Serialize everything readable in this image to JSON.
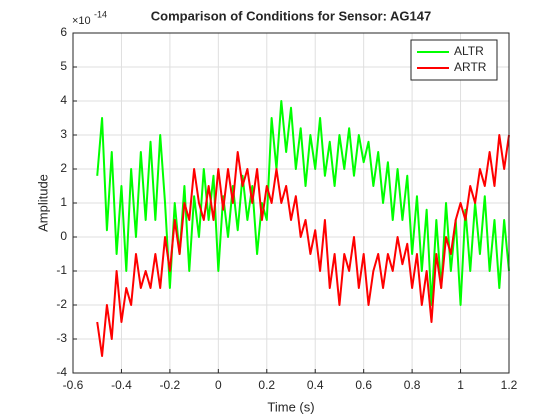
{
  "chart_data": {
    "type": "line",
    "title": "Comparison of Conditions for Sensor: AG147",
    "x_label": "Time (s)",
    "y_label": "Amplitude",
    "y_exponent": {
      "base": "×10",
      "power": "-14"
    },
    "x": [
      -0.5,
      -0.48,
      -0.46,
      -0.44,
      -0.42,
      -0.4,
      -0.38,
      -0.36,
      -0.34,
      -0.32,
      -0.3,
      -0.28,
      -0.26,
      -0.24,
      -0.22,
      -0.2,
      -0.18,
      -0.16,
      -0.14,
      -0.12,
      -0.1,
      -0.08,
      -0.06,
      -0.04,
      -0.02,
      0,
      0.02,
      0.04,
      0.06,
      0.08,
      0.1,
      0.12,
      0.14,
      0.16,
      0.18,
      0.2,
      0.22,
      0.24,
      0.26,
      0.28,
      0.3,
      0.32,
      0.34,
      0.36,
      0.38,
      0.4,
      0.42,
      0.44,
      0.46,
      0.48,
      0.5,
      0.52,
      0.54,
      0.56,
      0.58,
      0.6,
      0.62,
      0.64,
      0.66,
      0.68,
      0.7,
      0.72,
      0.74,
      0.76,
      0.78,
      0.8,
      0.82,
      0.84,
      0.86,
      0.88,
      0.9,
      0.92,
      0.94,
      0.96,
      0.98,
      1,
      1.02,
      1.04,
      1.06,
      1.08,
      1.1,
      1.12,
      1.14,
      1.16,
      1.18,
      1.2
    ],
    "series": [
      {
        "name": "ALTR",
        "color": "#00ff00",
        "values": [
          1.8,
          3.5,
          0.2,
          2.5,
          -0.5,
          1.5,
          -1.0,
          2.0,
          0.0,
          2.5,
          0.5,
          2.8,
          0.5,
          3.0,
          1.0,
          -1.5,
          1.0,
          -0.5,
          1.5,
          -1.0,
          1.2,
          0.0,
          2.0,
          0.5,
          1.8,
          -1.0,
          1.2,
          0.0,
          1.5,
          0.2,
          1.8,
          0.5,
          1.5,
          -0.5,
          1.0,
          0.5,
          3.5,
          2.0,
          4.0,
          2.5,
          3.8,
          2.0,
          3.2,
          1.5,
          3.0,
          2.0,
          3.5,
          1.8,
          2.8,
          1.5,
          3.0,
          2.0,
          3.2,
          1.8,
          3.0,
          2.2,
          2.8,
          1.5,
          2.5,
          1.0,
          2.2,
          0.5,
          2.0,
          0.5,
          1.8,
          -0.5,
          1.2,
          -1.0,
          0.8,
          -2.0,
          0.5,
          -1.5,
          1.0,
          -1.0,
          0.5,
          -2.0,
          0.8,
          -1.0,
          1.0,
          -0.5,
          1.2,
          -1.0,
          0.5,
          -1.5,
          0.5,
          -1.0
        ]
      },
      {
        "name": "ARTR",
        "color": "#ff0000",
        "values": [
          -2.5,
          -3.5,
          -2.0,
          -3.0,
          -1.0,
          -2.5,
          -1.5,
          -2.0,
          -0.5,
          -1.5,
          -1.0,
          -1.5,
          -0.5,
          -1.5,
          0.0,
          -1.0,
          0.5,
          -0.5,
          1.0,
          0.5,
          2.0,
          1.0,
          0.5,
          1.5,
          0.5,
          2.0,
          0.8,
          2.0,
          1.0,
          2.5,
          1.5,
          2.0,
          1.0,
          2.0,
          0.5,
          1.5,
          1.0,
          2.0,
          1.0,
          1.5,
          0.5,
          1.2,
          0.0,
          0.5,
          -0.5,
          0.2,
          -1.0,
          0.5,
          -1.5,
          -0.5,
          -2.0,
          -0.5,
          -1.0,
          0.0,
          -1.5,
          -0.5,
          -2.0,
          -1.0,
          -0.5,
          -1.5,
          -0.5,
          -1.0,
          0.0,
          -0.8,
          -0.2,
          -1.5,
          -0.5,
          -2.0,
          -1.0,
          -2.5,
          -0.5,
          -1.5,
          0.0,
          -0.5,
          0.5,
          1.0,
          0.5,
          1.5,
          1.0,
          2.0,
          1.5,
          2.5,
          1.5,
          3.0,
          2.0,
          3.0
        ]
      }
    ],
    "xlim": [
      -0.6,
      1.2
    ],
    "xticks": [
      -0.6,
      -0.4,
      -0.2,
      0,
      0.2,
      0.4,
      0.6,
      0.8,
      1,
      1.2
    ],
    "ylim": [
      -4,
      6
    ],
    "yticks": [
      -4,
      -3,
      -2,
      -1,
      0,
      1,
      2,
      3,
      4,
      5,
      6
    ],
    "grid": true,
    "legend": "northeast"
  }
}
